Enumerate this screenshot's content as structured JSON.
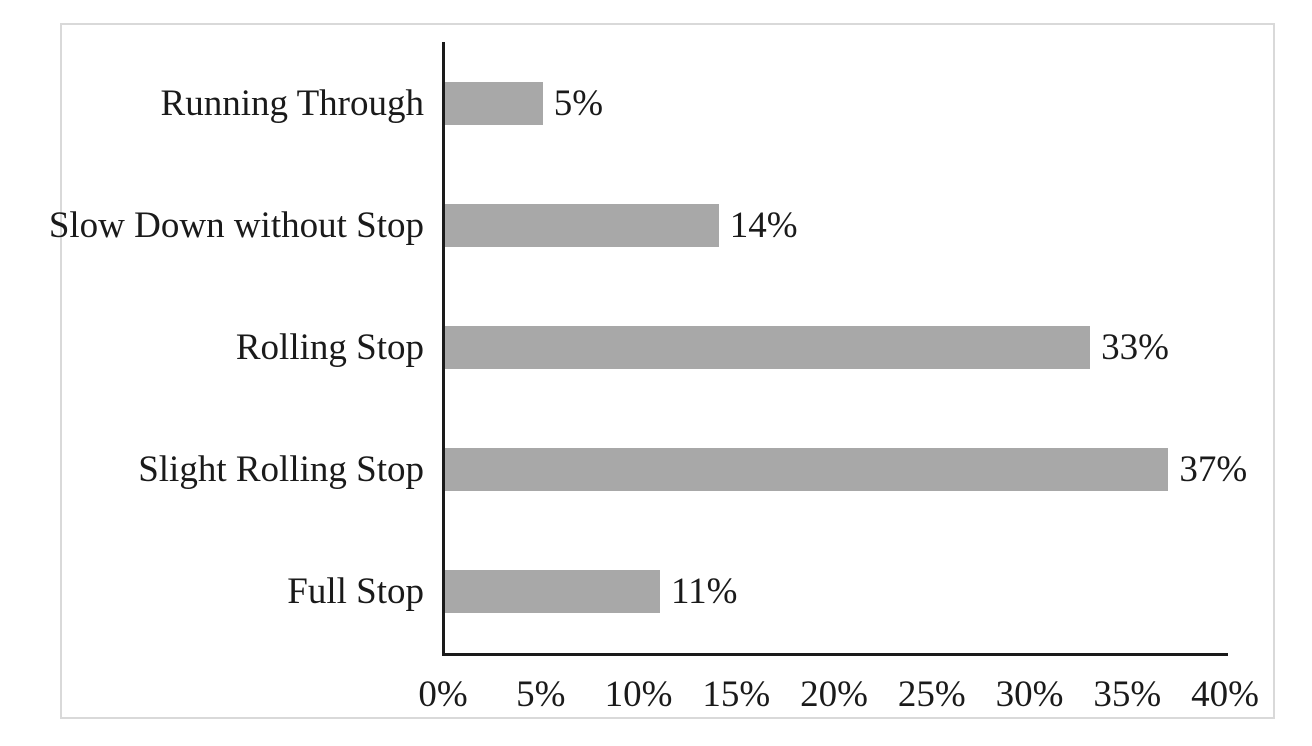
{
  "chart_data": {
    "type": "bar",
    "orientation": "horizontal",
    "title": "",
    "xlabel": "",
    "ylabel": "",
    "categories": [
      "Running Through",
      "Slow Down without Stop",
      "Rolling Stop",
      "Slight Rolling Stop",
      "Full Stop"
    ],
    "values": [
      5,
      14,
      33,
      37,
      11
    ],
    "value_labels": [
      "5%",
      "14%",
      "33%",
      "37%",
      "11%"
    ],
    "x_ticks": [
      "0%",
      "5%",
      "10%",
      "15%",
      "20%",
      "25%",
      "30%",
      "35%",
      "40%"
    ],
    "x_tick_values": [
      0,
      5,
      10,
      15,
      20,
      25,
      30,
      35,
      40
    ],
    "xlim": [
      0,
      40
    ],
    "grid": false,
    "legend": "none",
    "bar_color": "#a8a8a8",
    "axis_color": "#1a1a1a",
    "text_color": "#1a1a1a",
    "frame_border_color": "#d9d9d9"
  }
}
